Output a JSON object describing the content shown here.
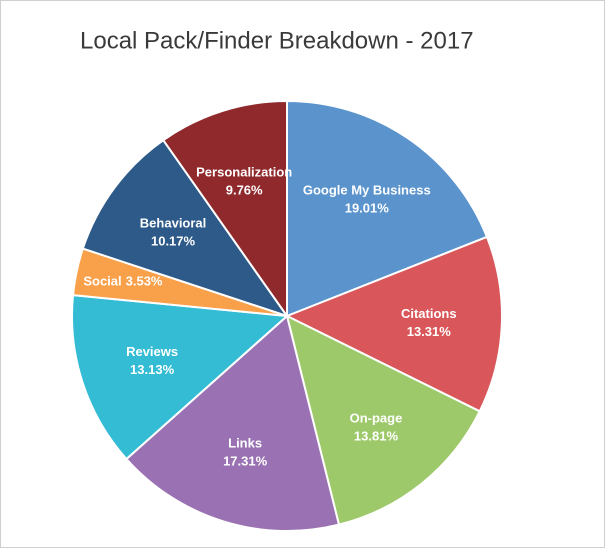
{
  "chart_data": {
    "type": "pie",
    "title": "Local Pack/Finder Breakdown - 2017",
    "categories": [
      "Google My Business",
      "Citations",
      "On-page",
      "Links",
      "Reviews",
      "Social",
      "Behavioral",
      "Personalization"
    ],
    "values": [
      19.01,
      13.31,
      13.81,
      17.31,
      13.13,
      3.53,
      10.17,
      9.76
    ],
    "value_labels": [
      "19.01%",
      "13.31%",
      "13.81%",
      "17.31%",
      "13.13%",
      "3.53%",
      "10.17%",
      "9.76%"
    ],
    "colors": [
      "#5b93cd",
      "#d9575a",
      "#9dc96a",
      "#9a72b3",
      "#33bcd4",
      "#f8a14a",
      "#2d5a89",
      "#90292c"
    ]
  }
}
